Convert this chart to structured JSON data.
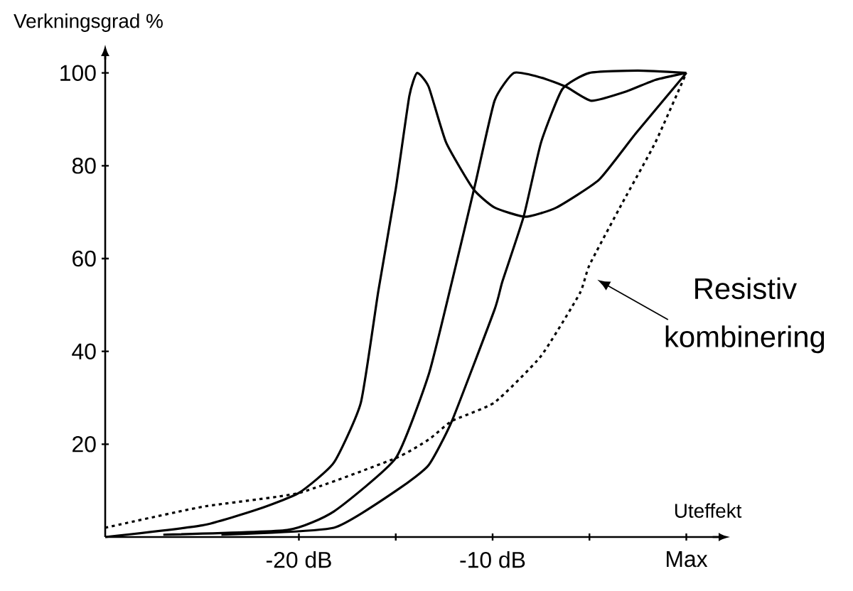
{
  "chart_data": {
    "type": "line",
    "xlabel": "Uteffekt",
    "ylabel": "Verkningsgrad   %",
    "xlim": [
      -30,
      2
    ],
    "ylim": [
      0,
      105
    ],
    "xticks": [
      {
        "value": -20,
        "label": "-20 dB"
      },
      {
        "value": -15,
        "label": null
      },
      {
        "value": -10,
        "label": "-10 dB"
      },
      {
        "value": -5,
        "label": null
      },
      {
        "value": 0,
        "label": "Max"
      }
    ],
    "yticks": [
      20,
      40,
      60,
      80,
      100
    ],
    "grid": false,
    "series": [
      {
        "color": "#000000",
        "line_style": "solid",
        "x": [
          -30,
          -25,
          -22.1,
          -20,
          -18.2,
          -16.8,
          -15.9,
          -15,
          -14.3,
          -13.9,
          -13.3,
          -12.4,
          -11,
          -9.9,
          -8.3,
          -6.7,
          -4.5,
          -2.6,
          0
        ],
        "values": [
          0,
          2.5,
          6,
          9.5,
          16,
          29,
          53,
          75,
          95,
          100,
          97,
          85,
          75,
          71,
          69,
          71,
          77,
          87,
          100
        ]
      },
      {
        "color": "#000000",
        "line_style": "solid",
        "x": [
          -27,
          -20.6,
          -18.2,
          -15,
          -13.3,
          -12.1,
          -10.9,
          -9.9,
          -8.9,
          -7.5,
          -6.2,
          -4.9,
          -3.1,
          -1.6,
          0
        ],
        "values": [
          0.5,
          1.5,
          5.5,
          17,
          35,
          55,
          76,
          94,
          100,
          99,
          97,
          94,
          96,
          98.5,
          100
        ]
      },
      {
        "color": "#000000",
        "line_style": "solid",
        "x": [
          -24,
          -18.2,
          -14.8,
          -13.3,
          -12.1,
          -9.9,
          -9.5,
          -8.4,
          -7.5,
          -6.4,
          -5,
          -2.5,
          0
        ],
        "values": [
          0.5,
          2,
          10.5,
          15.5,
          25,
          49,
          55,
          69,
          85,
          96.5,
          100,
          100.5,
          100
        ]
      },
      {
        "color": "#000000",
        "line_style": "dotted",
        "x": [
          -30,
          -25,
          -20,
          -15,
          -13.3,
          -12.1,
          -9.9,
          -7.5,
          -5.5,
          -5,
          -3.3,
          -1.6,
          0
        ],
        "values": [
          2,
          6.5,
          9.5,
          17,
          21,
          25,
          29,
          39,
          52.5,
          58.6,
          72,
          85,
          100
        ]
      }
    ],
    "annotations": [
      "Resistiv kombinering"
    ]
  }
}
